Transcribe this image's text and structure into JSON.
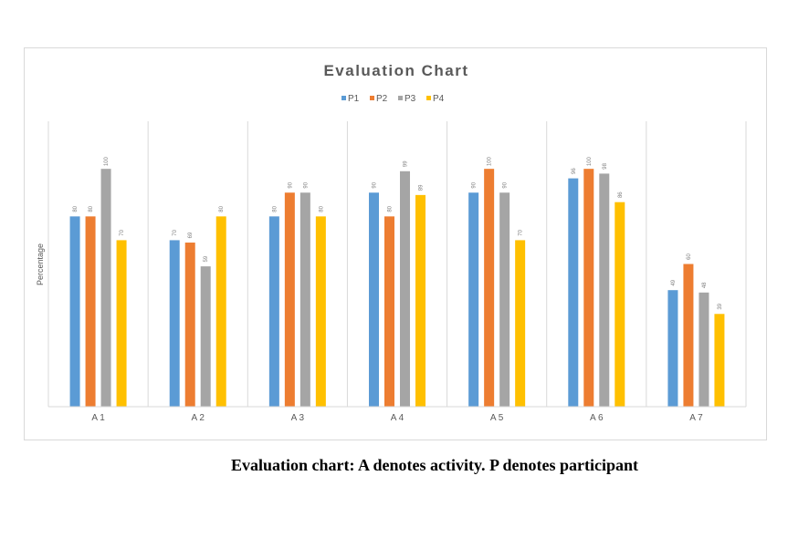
{
  "chart_data": {
    "type": "bar",
    "title": "Evaluation Chart",
    "xlabel": "",
    "ylabel": "Percentage",
    "ylim": [
      0,
      120
    ],
    "grid": "vertical category separators",
    "legend_position": "top",
    "categories": [
      "A 1",
      "A 2",
      "A 3",
      "A 4",
      "A 5",
      "A 6",
      "A 7"
    ],
    "series": [
      {
        "name": "P1",
        "color": "#5b9bd5",
        "values": [
          80,
          70,
          80,
          90,
          90,
          96,
          49
        ]
      },
      {
        "name": "P2",
        "color": "#ed7d31",
        "values": [
          80,
          69,
          90,
          80,
          100,
          100,
          60
        ]
      },
      {
        "name": "P3",
        "color": "#a5a5a5",
        "values": [
          100,
          59,
          90,
          99,
          90,
          98,
          48
        ]
      },
      {
        "name": "P4",
        "color": "#ffc000",
        "values": [
          70,
          80,
          80,
          89,
          70,
          86,
          39
        ]
      }
    ]
  },
  "caption": "Evaluation chart: A denotes activity. P denotes participant"
}
